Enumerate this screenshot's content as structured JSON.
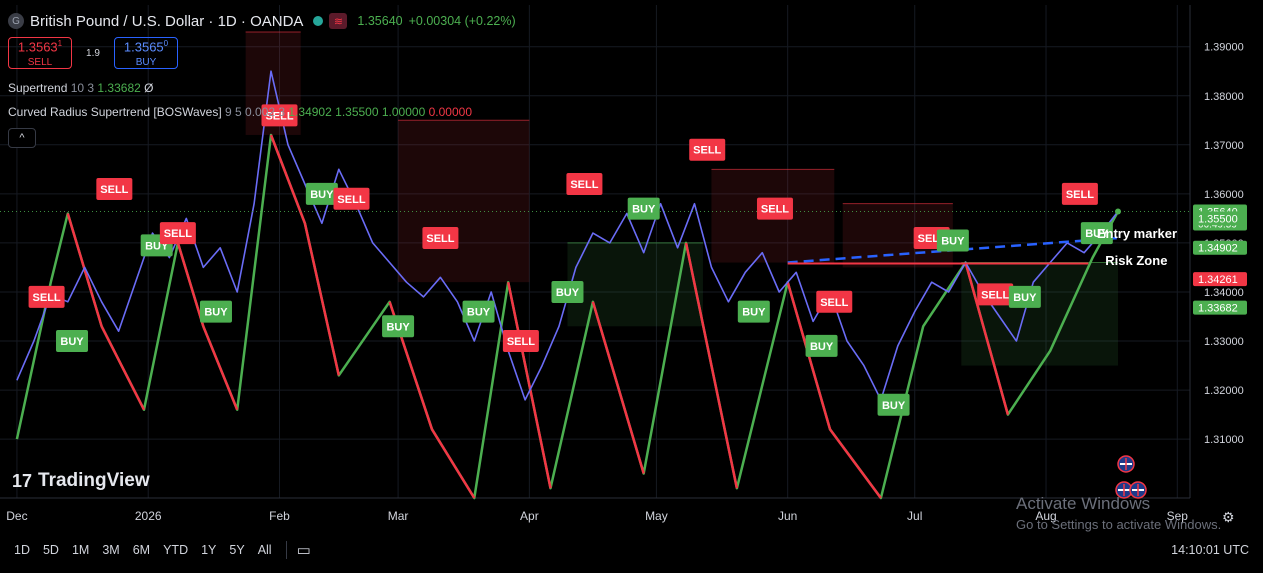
{
  "header": {
    "symbol_icon": "G",
    "title": "British Pound / U.S. Dollar · 1D · OANDA",
    "status_icon": "market-open-dot",
    "wave_icon": "≋",
    "last": "1.35640",
    "change": "+0.00304 (+0.22%)"
  },
  "trade": {
    "sell_price": "1.3563",
    "sell_sup": "1",
    "sell_label": "SELL",
    "spread": "1.9",
    "buy_price": "1.3565",
    "buy_sup": "0",
    "buy_label": "BUY"
  },
  "indicators": [
    {
      "name": "Supertrend",
      "params": "10 3",
      "values": [
        {
          "text": "1.33682",
          "color": "#4caf50"
        },
        {
          "text": "Ø",
          "color": "#d1d4dc"
        }
      ]
    },
    {
      "name": "Curved Radius Supertrend [BOSWaves]",
      "params": "9 5 0.002 3",
      "values": [
        {
          "text": "1.34902",
          "color": "#4caf50"
        },
        {
          "text": "1.35500",
          "color": "#4caf50"
        },
        {
          "text": "1.00000",
          "color": "#4caf50"
        },
        {
          "text": "0.00000",
          "color": "#f23645"
        }
      ]
    }
  ],
  "collapse_icon": "^",
  "logo": {
    "mark": "17",
    "text": "TradingView"
  },
  "watermark": {
    "line1": "Activate Windows",
    "line2": "Go to Settings to activate Windows."
  },
  "toolbar": {
    "timeframes": [
      "1D",
      "5D",
      "1M",
      "3M",
      "6M",
      "YTD",
      "1Y",
      "5Y",
      "All"
    ],
    "calendar_icon": "calendar-range-icon",
    "clock": "14:10:01 UTC"
  },
  "settings_icon": "gear-icon",
  "colors": {
    "bull": "#4caf50",
    "bear": "#f23645",
    "price_line": "#6a6cf6",
    "dashed": "#2962ff",
    "axis_text": "#d1d4dc"
  },
  "chart_data": {
    "type": "line",
    "title": "British Pound / U.S. Dollar · 1D · OANDA",
    "xlabel": "",
    "ylabel": "",
    "ylim": [
      1.298,
      1.3985
    ],
    "y_ticks": [
      1.39,
      1.38,
      1.37,
      1.36,
      1.35,
      1.34,
      1.33,
      1.32,
      1.31
    ],
    "y_tick_labels": [
      "1.39000",
      "1.38000",
      "1.37000",
      "1.36000",
      "1.35000",
      "1.34000",
      "1.33000",
      "1.32000",
      "1.31000"
    ],
    "x_ticks": [
      {
        "label": "Dec",
        "date": "2025-12-01"
      },
      {
        "label": "2026",
        "date": "2026-01-01"
      },
      {
        "label": "Feb",
        "date": "2026-02-01"
      },
      {
        "label": "Mar",
        "date": "2026-03-01"
      },
      {
        "label": "Apr",
        "date": "2026-04-01"
      },
      {
        "label": "May",
        "date": "2026-05-01"
      },
      {
        "label": "Jun",
        "date": "2026-06-01"
      },
      {
        "label": "Jul",
        "date": "2026-07-01"
      },
      {
        "label": "Aug",
        "date": "2026-08-01"
      },
      {
        "label": "Sep",
        "date": "2026-09-01"
      }
    ],
    "series": [
      {
        "name": "",
        "color": "#6a6cf6",
        "points": [
          [
            "2025-12-01",
            1.322
          ],
          [
            "2025-12-05",
            1.33
          ],
          [
            "2025-12-09",
            1.3395
          ],
          [
            "2025-12-13",
            1.338
          ],
          [
            "2025-12-17",
            1.345
          ],
          [
            "2025-12-21",
            1.338
          ],
          [
            "2025-12-25",
            1.332
          ],
          [
            "2025-12-29",
            1.342
          ],
          [
            "2026-01-02",
            1.352
          ],
          [
            "2026-01-06",
            1.347
          ],
          [
            "2026-01-10",
            1.355
          ],
          [
            "2026-01-14",
            1.345
          ],
          [
            "2026-01-18",
            1.349
          ],
          [
            "2026-01-22",
            1.34
          ],
          [
            "2026-01-26",
            1.358
          ],
          [
            "2026-01-30",
            1.385
          ],
          [
            "2026-02-03",
            1.37
          ],
          [
            "2026-02-07",
            1.362
          ],
          [
            "2026-02-11",
            1.354
          ],
          [
            "2026-02-15",
            1.365
          ],
          [
            "2026-02-19",
            1.358
          ],
          [
            "2026-02-23",
            1.35
          ],
          [
            "2026-02-27",
            1.346
          ],
          [
            "2026-03-03",
            1.342
          ],
          [
            "2026-03-07",
            1.339
          ],
          [
            "2026-03-11",
            1.343
          ],
          [
            "2026-03-15",
            1.338
          ],
          [
            "2026-03-19",
            1.33
          ],
          [
            "2026-03-23",
            1.34
          ],
          [
            "2026-03-27",
            1.328
          ],
          [
            "2026-03-31",
            1.318
          ],
          [
            "2026-04-04",
            1.325
          ],
          [
            "2026-04-08",
            1.333
          ],
          [
            "2026-04-12",
            1.345
          ],
          [
            "2026-04-16",
            1.352
          ],
          [
            "2026-04-20",
            1.35
          ],
          [
            "2026-04-24",
            1.356
          ],
          [
            "2026-04-28",
            1.348
          ],
          [
            "2026-05-02",
            1.358
          ],
          [
            "2026-05-06",
            1.349
          ],
          [
            "2026-05-10",
            1.358
          ],
          [
            "2026-05-14",
            1.345
          ],
          [
            "2026-05-18",
            1.338
          ],
          [
            "2026-05-22",
            1.344
          ],
          [
            "2026-05-26",
            1.348
          ],
          [
            "2026-05-30",
            1.34
          ],
          [
            "2026-06-03",
            1.344
          ],
          [
            "2026-06-07",
            1.334
          ],
          [
            "2026-06-11",
            1.34
          ],
          [
            "2026-06-15",
            1.33
          ],
          [
            "2026-06-19",
            1.325
          ],
          [
            "2026-06-23",
            1.318
          ],
          [
            "2026-06-27",
            1.329
          ],
          [
            "2026-07-01",
            1.336
          ],
          [
            "2026-07-05",
            1.342
          ],
          [
            "2026-07-09",
            1.34
          ],
          [
            "2026-07-13",
            1.346
          ],
          [
            "2026-07-17",
            1.34
          ],
          [
            "2026-07-21",
            1.335
          ],
          [
            "2026-07-25",
            1.33
          ],
          [
            "2026-07-29",
            1.342
          ],
          [
            "2026-08-02",
            1.346
          ],
          [
            "2026-08-06",
            1.35
          ],
          [
            "2026-08-10",
            1.348
          ],
          [
            "2026-08-14",
            1.352
          ],
          [
            "2026-08-18",
            1.3564
          ]
        ]
      },
      {
        "name": "",
        "color": "#4caf50",
        "points": [
          [
            "2025-12-01",
            1.31
          ],
          [
            "2025-12-09",
            1.342
          ],
          [
            "2025-12-13",
            1.356
          ],
          [
            "2025-12-21",
            1.333
          ],
          [
            "2025-12-31",
            1.316
          ],
          [
            "2026-01-08",
            1.35
          ],
          [
            "2026-01-14",
            1.333
          ],
          [
            "2026-01-22",
            1.316
          ],
          [
            "2026-01-30",
            1.372
          ],
          [
            "2026-02-07",
            1.354
          ],
          [
            "2026-02-15",
            1.323
          ],
          [
            "2026-02-27",
            1.338
          ],
          [
            "2026-03-09",
            1.312
          ],
          [
            "2026-03-19",
            1.298
          ],
          [
            "2026-03-27",
            1.342
          ],
          [
            "2026-04-06",
            1.3
          ],
          [
            "2026-04-16",
            1.338
          ],
          [
            "2026-04-28",
            1.303
          ],
          [
            "2026-05-08",
            1.35
          ],
          [
            "2026-05-20",
            1.3
          ],
          [
            "2026-06-01",
            1.342
          ],
          [
            "2026-06-11",
            1.312
          ],
          [
            "2026-06-23",
            1.298
          ],
          [
            "2026-07-03",
            1.333
          ],
          [
            "2026-07-13",
            1.346
          ],
          [
            "2026-07-23",
            1.315
          ],
          [
            "2026-08-02",
            1.328
          ],
          [
            "2026-08-12",
            1.347
          ],
          [
            "2026-08-18",
            1.3564
          ]
        ]
      }
    ],
    "bands": [
      {
        "type": "bearish",
        "color": "#f23645",
        "from": "2026-01-24",
        "to": "2026-02-06",
        "top": 1.393,
        "bottom": 1.372
      },
      {
        "type": "bearish",
        "color": "#f23645",
        "from": "2026-03-01",
        "to": "2026-04-01",
        "top": 1.375,
        "bottom": 1.342
      },
      {
        "type": "bullish",
        "color": "#4caf50",
        "from": "2026-04-10",
        "to": "2026-05-12",
        "top": 1.35,
        "bottom": 1.333
      },
      {
        "type": "bearish",
        "color": "#f23645",
        "from": "2026-05-14",
        "to": "2026-06-12",
        "top": 1.365,
        "bottom": 1.346
      },
      {
        "type": "bearish",
        "color": "#f23645",
        "from": "2026-06-14",
        "to": "2026-07-10",
        "top": 1.358,
        "bottom": 1.345
      },
      {
        "type": "bullish",
        "color": "#4caf50",
        "from": "2026-07-12",
        "to": "2026-08-18",
        "top": 1.346,
        "bottom": 1.325
      }
    ],
    "signals": [
      {
        "label": "SELL",
        "date": "2025-12-08",
        "price": 1.339
      },
      {
        "label": "BUY",
        "date": "2025-12-14",
        "price": 1.33
      },
      {
        "label": "SELL",
        "date": "2025-12-24",
        "price": 1.361
      },
      {
        "label": "BUY",
        "date": "2026-01-03",
        "price": 1.3495
      },
      {
        "label": "SELL",
        "date": "2026-01-08",
        "price": 1.352
      },
      {
        "label": "BUY",
        "date": "2026-01-17",
        "price": 1.336
      },
      {
        "label": "SELL",
        "date": "2026-02-01",
        "price": 1.376
      },
      {
        "label": "BUY",
        "date": "2026-02-11",
        "price": 1.36
      },
      {
        "label": "SELL",
        "date": "2026-02-18",
        "price": 1.359
      },
      {
        "label": "BUY",
        "date": "2026-03-01",
        "price": 1.333
      },
      {
        "label": "SELL",
        "date": "2026-03-11",
        "price": 1.351
      },
      {
        "label": "BUY",
        "date": "2026-03-20",
        "price": 1.336
      },
      {
        "label": "SELL",
        "date": "2026-03-30",
        "price": 1.33
      },
      {
        "label": "BUY",
        "date": "2026-04-10",
        "price": 1.34
      },
      {
        "label": "SELL",
        "date": "2026-04-14",
        "price": 1.362
      },
      {
        "label": "BUY",
        "date": "2026-04-28",
        "price": 1.357
      },
      {
        "label": "SELL",
        "date": "2026-05-13",
        "price": 1.369
      },
      {
        "label": "SELL",
        "date": "2026-05-29",
        "price": 1.357
      },
      {
        "label": "BUY",
        "date": "2026-05-24",
        "price": 1.336
      },
      {
        "label": "BUY",
        "date": "2026-06-09",
        "price": 1.329
      },
      {
        "label": "SELL",
        "date": "2026-06-12",
        "price": 1.338
      },
      {
        "label": "BUY",
        "date": "2026-06-26",
        "price": 1.317
      },
      {
        "label": "SELL",
        "date": "2026-07-05",
        "price": 1.351
      },
      {
        "label": "BUY",
        "date": "2026-07-10",
        "price": 1.3505
      },
      {
        "label": "SELL",
        "date": "2026-07-20",
        "price": 1.3395
      },
      {
        "label": "BUY",
        "date": "2026-07-27",
        "price": 1.339
      },
      {
        "label": "SELL",
        "date": "2026-08-09",
        "price": 1.36
      },
      {
        "label": "BUY",
        "date": "2026-08-13",
        "price": 1.352
      }
    ],
    "annotations": [
      {
        "text": "Entry marker",
        "date": "2026-08-13",
        "price": 1.351
      },
      {
        "text": "Risk Zone",
        "date": "2026-08-15",
        "price": 1.3455
      }
    ],
    "entry_line": {
      "from": "2026-06-01",
      "to": "2026-08-18",
      "price_from": 1.346,
      "price_to": 1.351,
      "style": "dashed"
    },
    "risk_line": {
      "from": "2026-06-01",
      "to": "2026-08-11",
      "price": 1.3458
    },
    "price_labels": [
      {
        "text": "1.35640",
        "sub": "06:49:59",
        "price": 1.3564,
        "color": "#4caf50"
      },
      {
        "text": "1.35500",
        "price": 1.355,
        "color": "#4caf50"
      },
      {
        "text": "1.34902",
        "price": 1.34902,
        "color": "#4caf50"
      },
      {
        "text": "1.34261",
        "price": 1.34261,
        "color": "#f23645"
      },
      {
        "text": "1.33682",
        "price": 1.33682,
        "color": "#4caf50"
      }
    ],
    "event_icons": [
      "uk-flag-icon",
      "us-flag-icon",
      "uk-flag-icon"
    ],
    "grid": true
  }
}
